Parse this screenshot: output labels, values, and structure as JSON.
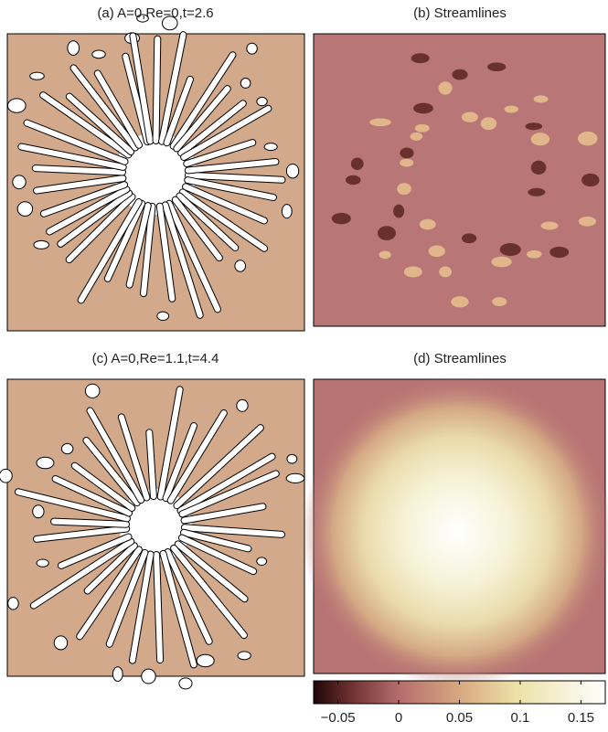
{
  "panels": [
    {
      "title": "(a) A=0,Re=0,t=2.6"
    },
    {
      "title": "(b) Streamlines"
    },
    {
      "title": "(c) A=0,Re=1.1,t=4.4"
    },
    {
      "title": "(d) Streamlines"
    }
  ],
  "colorbar": {
    "lim": [
      -0.07,
      0.17
    ],
    "ticks": [
      {
        "value": -0.05,
        "label": "−0.05"
      },
      0,
      0.05,
      0.1,
      0.15
    ]
  }
}
